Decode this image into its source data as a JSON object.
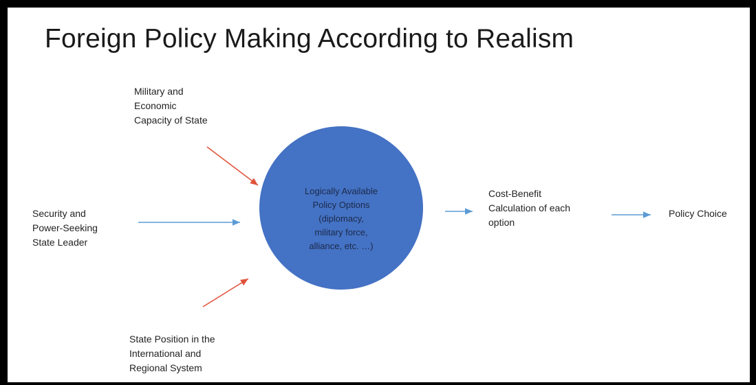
{
  "title": "Foreign Policy Making According to Realism",
  "nodes": {
    "military_capacity": "Military and\nEconomic\nCapacity of State",
    "state_leader": "Security and\nPower-Seeking\nState Leader",
    "state_position": "State Position in the\nInternational and\nRegional System",
    "policy_options": "Logically Available\nPolicy Options\n(diplomacy,\nmilitary force,\nalliance, etc. …)",
    "cost_benefit": "Cost-Benefit\nCalculation of each\noption",
    "policy_choice": "Policy Choice"
  },
  "colors": {
    "circle_fill": "#4472c4",
    "arrow_red": "#e0533c",
    "arrow_blue": "#5b9bd5"
  }
}
